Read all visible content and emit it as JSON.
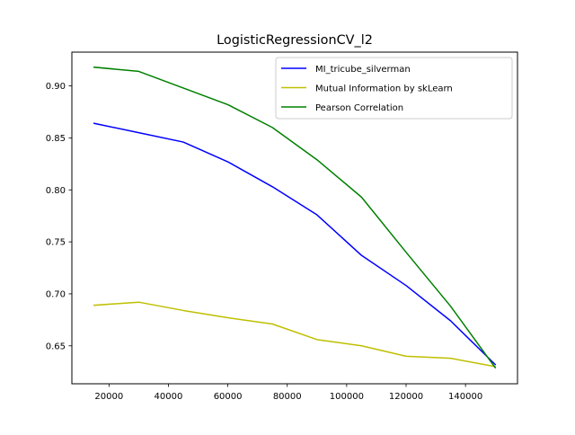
{
  "chart_data": {
    "type": "line",
    "title": "LogisticRegressionCV_l2",
    "xlabel": "",
    "ylabel": "",
    "xlim": [
      7500,
      157500
    ],
    "ylim": [
      0.6135,
      0.9325
    ],
    "xticks": [
      20000,
      40000,
      60000,
      80000,
      100000,
      120000,
      140000
    ],
    "xtick_labels": [
      "20000",
      "40000",
      "60000",
      "80000",
      "100000",
      "120000",
      "140000"
    ],
    "yticks": [
      0.65,
      0.7,
      0.75,
      0.8,
      0.85,
      0.9
    ],
    "ytick_labels": [
      "0.65",
      "0.70",
      "0.75",
      "0.80",
      "0.85",
      "0.90"
    ],
    "grid": false,
    "legend_position": "top-right",
    "x": [
      15000,
      30000,
      45000,
      60000,
      75000,
      90000,
      105000,
      120000,
      135000,
      150000
    ],
    "series": [
      {
        "name": "MI_tricube_silverman",
        "color": "#0000ff",
        "values": [
          0.864,
          0.855,
          0.846,
          0.827,
          0.803,
          0.776,
          0.737,
          0.708,
          0.674,
          0.632
        ]
      },
      {
        "name": "Mutual Information by skLearn",
        "color": "#bfbf00",
        "values": [
          0.689,
          0.692,
          0.684,
          0.677,
          0.671,
          0.656,
          0.65,
          0.64,
          0.638,
          0.63
        ]
      },
      {
        "name": "Pearson Correlation",
        "color": "#008000",
        "values": [
          0.918,
          0.914,
          0.898,
          0.882,
          0.86,
          0.829,
          0.793,
          0.74,
          0.688,
          0.629
        ]
      }
    ]
  }
}
